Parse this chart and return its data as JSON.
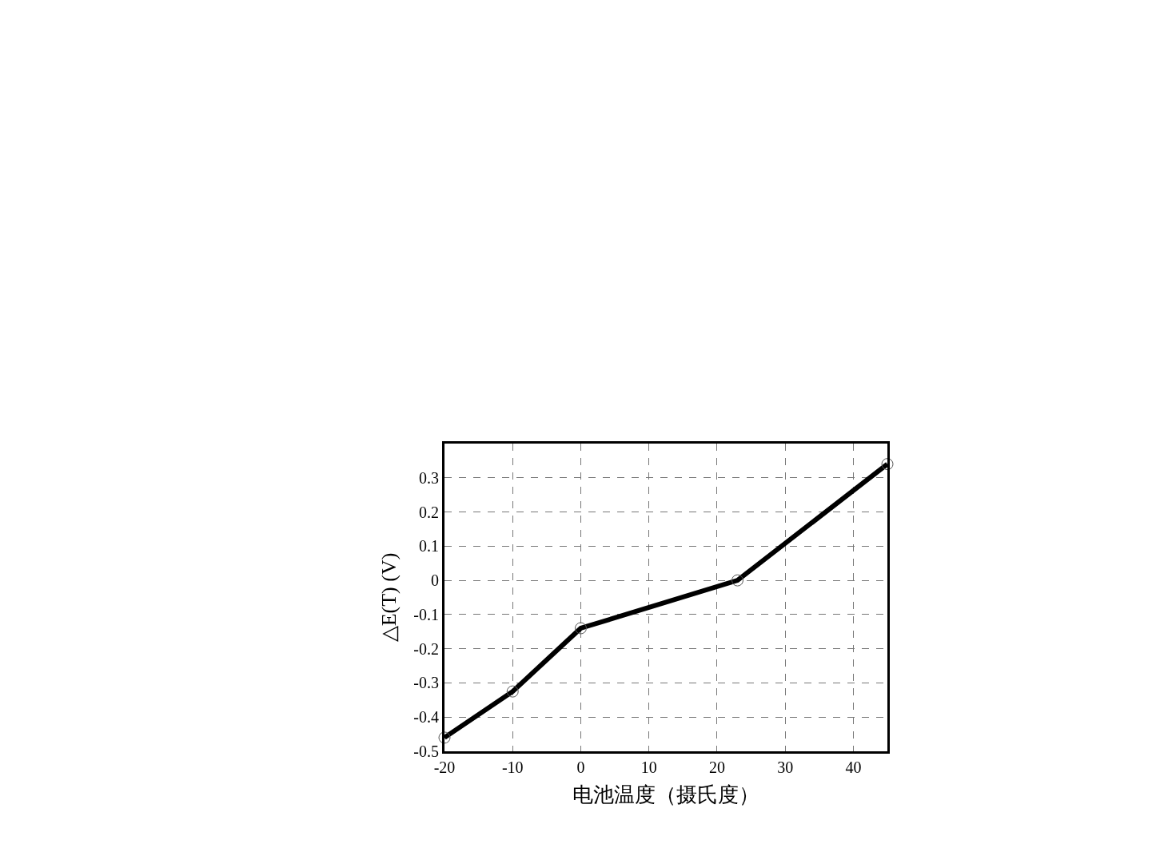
{
  "chart_data": {
    "type": "line",
    "xlabel": "电池温度（摄氏度）",
    "ylabel": "△E(T) (V)",
    "x": [
      -20,
      -10,
      0,
      23,
      45
    ],
    "series": [
      {
        "color": "#000000",
        "values": [
          -0.46,
          -0.325,
          -0.14,
          0,
          0.34
        ]
      }
    ],
    "xlim": [
      -20,
      45
    ],
    "xticks": [
      -20,
      -10,
      0,
      10,
      20,
      30,
      40
    ],
    "ylim": [
      -0.5,
      0.4
    ],
    "yticks": [
      -0.5,
      -0.4,
      -0.3,
      -0.2,
      -0.1,
      0,
      0.1,
      0.2,
      0.3
    ],
    "grid": true,
    "marker": "circle",
    "line_style": "solid"
  }
}
